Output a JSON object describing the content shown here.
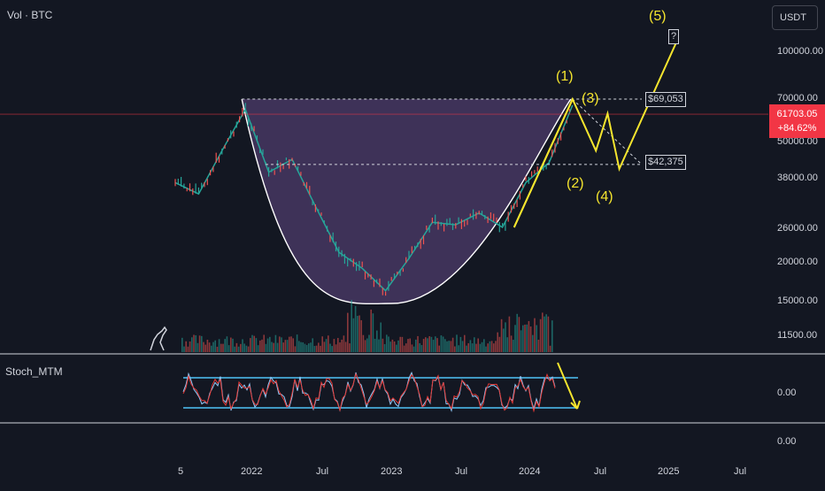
{
  "header": {
    "vol_label": "Vol · BTC"
  },
  "currency_button": "USDT",
  "price_axis": [
    "100000.00",
    "70000.00",
    "50000.00",
    "38000.00",
    "26000.00",
    "20000.00",
    "15000.00",
    "11500.00"
  ],
  "current_price": {
    "value": "61703.05",
    "change": "+84.62%"
  },
  "price_levels": {
    "high": "$69,053",
    "low": "$42,375"
  },
  "wave_labels": [
    "(1)",
    "(2)",
    "(3)",
    "(4)",
    "(5)",
    "?"
  ],
  "oscillator": {
    "name": "Stoch_MTM",
    "axis": [
      "0.00",
      "0.00"
    ]
  },
  "time_axis": [
    "5",
    "2022",
    "Jul",
    "2023",
    "Jul",
    "2024",
    "Jul",
    "2025",
    "Jul"
  ],
  "colors": {
    "background": "#131722",
    "wave": "#f5e52e",
    "cup_fill": "#4a3a66",
    "price_up": "#26a69a",
    "price_down": "#ef5350",
    "badge": "#f23645",
    "osc_band": "#4fc3f7"
  },
  "chart_data": {
    "type": "line",
    "title": "",
    "xlabel": "",
    "ylabel": "",
    "scale": "log",
    "x": [
      "2021-05",
      "2021-07",
      "2021-09",
      "2021-11",
      "2022-01",
      "2022-03",
      "2022-05",
      "2022-07",
      "2022-09",
      "2022-11",
      "2023-01",
      "2023-03",
      "2023-05",
      "2023-07",
      "2023-09",
      "2023-11",
      "2024-01",
      "2024-03"
    ],
    "series": [
      {
        "values": [
          37000,
          34000,
          47000,
          64000,
          40000,
          44000,
          31000,
          22000,
          19500,
          16500,
          21000,
          27500,
          27000,
          29500,
          26500,
          37000,
          43000,
          66000
        ]
      }
    ],
    "levels": [
      69053,
      42375
    ],
    "ylim": [
      9500,
      135000
    ],
    "projection": [
      {
        "label": "(1)",
        "date": "2024-03",
        "value": 69053
      },
      {
        "label": "(2)",
        "date": "2024-05",
        "value": 47000
      },
      {
        "label": "(3)",
        "date": "2024-06",
        "value": 62000
      },
      {
        "label": "(4)",
        "date": "2024-07",
        "value": 41000
      },
      {
        "label": "(5)",
        "date": "2024-12",
        "value": 108000
      }
    ]
  }
}
